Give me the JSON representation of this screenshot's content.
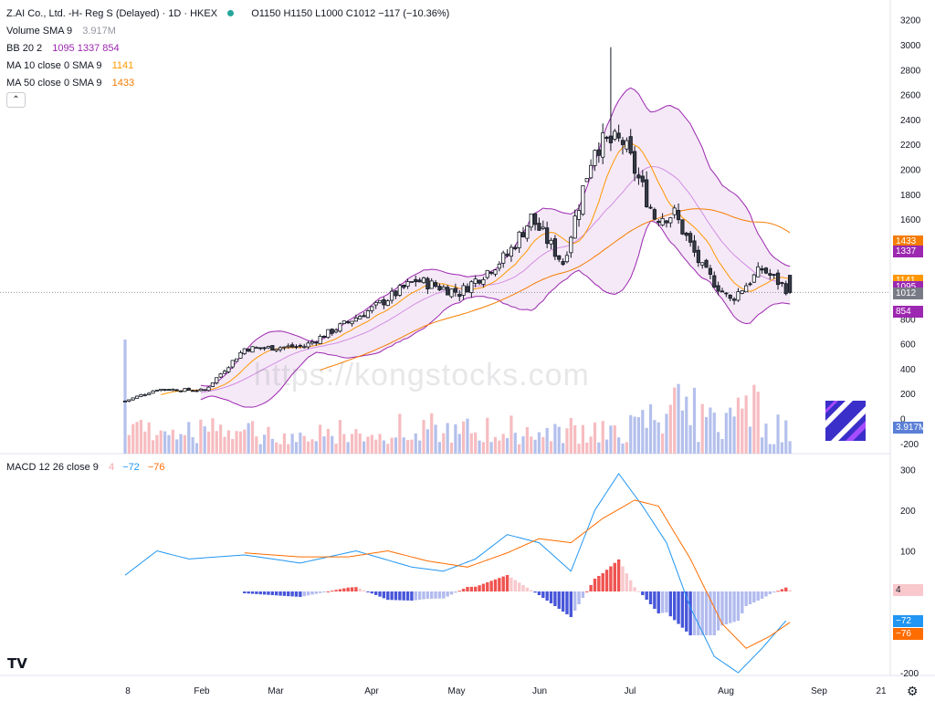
{
  "header": {
    "symbol": "Z.AI Co., Ltd. -H- Reg S (Delayed) · 1D · HKEX",
    "ohlc": "O1150 H1150 L1000 C1012",
    "change": "−117 (−10.36%)"
  },
  "indicators": {
    "volume_label": "Volume SMA 9",
    "volume_value": "3.917M",
    "bb_label": "BB 20 2",
    "bb_values": "1095 1337 854",
    "ma10_label": "MA 10 close 0 SMA 9",
    "ma10_value": "1141",
    "ma50_label": "MA 50 close 0 SMA 9",
    "ma50_value": "1433",
    "macd_label": "MACD 12 26 close 9",
    "macd_hist": "4",
    "macd_line": "−72",
    "macd_signal": "−76",
    "collapse_icon": "chevron-up-icon"
  },
  "price_pills": [
    {
      "text": "1433",
      "color": "#f57c00",
      "value": 1433
    },
    {
      "text": "1337",
      "color": "#9c27b0",
      "value": 1337
    },
    {
      "text": "1141",
      "color": "#ff9800",
      "value": 1141
    },
    {
      "text": "1095",
      "color": "#9c27b0",
      "value": 1095
    },
    {
      "text": "1012",
      "color": "#787b86",
      "value": 1012
    },
    {
      "text": "854",
      "color": "#9c27b0",
      "value": 854
    }
  ],
  "volume_pill": {
    "text": "3.917M",
    "color": "#5b7fd6"
  },
  "macd_pills": [
    {
      "text": "4",
      "color": "#f8c8cc",
      "textColor": "#131722",
      "value": 4
    },
    {
      "text": "−72",
      "color": "#2196f3",
      "textColor": "#ffffff",
      "value": -72
    },
    {
      "text": "−76",
      "color": "#ff6d00",
      "textColor": "#ffffff",
      "value": -76
    }
  ],
  "watermark": "https://kongstocks.com",
  "logo_text": "TV",
  "settings_icon": "gear-icon",
  "colors": {
    "up": "#ffffff",
    "down": "#363a45",
    "bb_line": "#9c27b0",
    "bb_fill": "rgba(156,39,176,0.10)",
    "ma10": "#ff9800",
    "ma50": "#f57c00",
    "vol_up": "#f6bcc0",
    "vol_down": "#b4c0ec",
    "macd_line": "#2196f3",
    "macd_signal": "#ff6d00",
    "hist_pos_strong": "#ef5350",
    "hist_pos_weak": "#f8c8cc",
    "hist_neg_strong": "#4756d9",
    "hist_neg_weak": "#b2bbee"
  },
  "chart_data": {
    "type": "candlestick",
    "x_ticks": [
      "8",
      "Feb",
      "Mar",
      "Apr",
      "May",
      "Jun",
      "Jul",
      "Aug",
      "Sep",
      "21"
    ],
    "price_axis": {
      "ticks": [
        -200,
        0,
        200,
        400,
        600,
        800,
        1000,
        1200,
        1400,
        1600,
        1800,
        2000,
        2200,
        2400,
        2600,
        2800,
        3000,
        3200
      ],
      "labels_hidden": [
        1000,
        1200,
        1400
      ]
    },
    "macd_axis": {
      "ticks": [
        300,
        200,
        100,
        -200
      ]
    },
    "last_close": 1012,
    "keypoints": [
      {
        "i": 0,
        "c": 140
      },
      {
        "i": 8,
        "c": 235
      },
      {
        "i": 20,
        "c": 225
      },
      {
        "i": 30,
        "c": 560
      },
      {
        "i": 45,
        "c": 580
      },
      {
        "i": 62,
        "c": 880
      },
      {
        "i": 73,
        "c": 1110
      },
      {
        "i": 84,
        "c": 1010
      },
      {
        "i": 96,
        "c": 1310
      },
      {
        "i": 102,
        "c": 1610
      },
      {
        "i": 110,
        "c": 1250
      },
      {
        "i": 118,
        "c": 2200
      },
      {
        "i": 125,
        "c": 2220
      },
      {
        "i": 133,
        "c": 1620
      },
      {
        "i": 138,
        "c": 1640
      },
      {
        "i": 145,
        "c": 1200
      },
      {
        "i": 152,
        "c": 950
      },
      {
        "i": 160,
        "c": 1200
      },
      {
        "i": 167,
        "c": 1020
      }
    ],
    "spike": {
      "i": 122,
      "h": 2980
    },
    "macd_line_points": [
      [
        0,
        40
      ],
      [
        8,
        100
      ],
      [
        16,
        80
      ],
      [
        30,
        90
      ],
      [
        44,
        70
      ],
      [
        58,
        100
      ],
      [
        72,
        60
      ],
      [
        80,
        50
      ],
      [
        88,
        80
      ],
      [
        96,
        140
      ],
      [
        104,
        120
      ],
      [
        112,
        50
      ],
      [
        118,
        200
      ],
      [
        124,
        290
      ],
      [
        130,
        210
      ],
      [
        136,
        120
      ],
      [
        142,
        -40
      ],
      [
        148,
        -160
      ],
      [
        154,
        -200
      ],
      [
        160,
        -140
      ],
      [
        166,
        -72
      ]
    ],
    "macd_signal_points": [
      [
        30,
        95
      ],
      [
        44,
        85
      ],
      [
        56,
        85
      ],
      [
        66,
        100
      ],
      [
        76,
        75
      ],
      [
        86,
        60
      ],
      [
        96,
        95
      ],
      [
        104,
        130
      ],
      [
        112,
        120
      ],
      [
        120,
        180
      ],
      [
        128,
        225
      ],
      [
        134,
        210
      ],
      [
        142,
        80
      ],
      [
        150,
        -80
      ],
      [
        156,
        -140
      ],
      [
        162,
        -110
      ],
      [
        167,
        -76
      ]
    ]
  }
}
